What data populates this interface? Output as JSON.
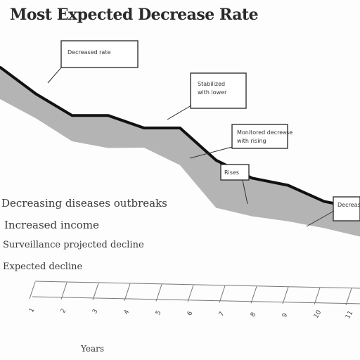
{
  "chart_data": {
    "type": "area",
    "title": "Most Expected Decrease Rate",
    "xlabel": "Years",
    "ylabel": "",
    "series": [
      {
        "upper": [
          100,
          85,
          73,
          73,
          66,
          66,
          48,
          38,
          34,
          25,
          21
        ]
      },
      {
        "lower": [
          90,
          80,
          68,
          65,
          66,
          57,
          34,
          30,
          28,
          25,
          21
        ]
      }
    ],
    "x": [
      "1",
      "2",
      "3",
      "4",
      "5",
      "6",
      "7",
      "8",
      "9",
      "10",
      "11"
    ],
    "ylim": [
      0,
      110
    ],
    "grid": false,
    "legend": "none",
    "callouts": [
      {
        "lines": [
          "Decreased rate"
        ]
      },
      {
        "lines": [
          "Stabilized",
          "with lower"
        ]
      },
      {
        "lines": [
          "Monitored decrease",
          "with rising"
        ]
      },
      {
        "lines": [
          "Rises"
        ]
      },
      {
        "lines": [
          "Decrease"
        ]
      }
    ],
    "side_notes": [
      "Decreasing diseases outbreaks",
      "Increased income",
      "Surveillance projected decline",
      "Expected decline"
    ],
    "colors": {
      "area": "#b4b4b4",
      "line": "#111111"
    }
  }
}
